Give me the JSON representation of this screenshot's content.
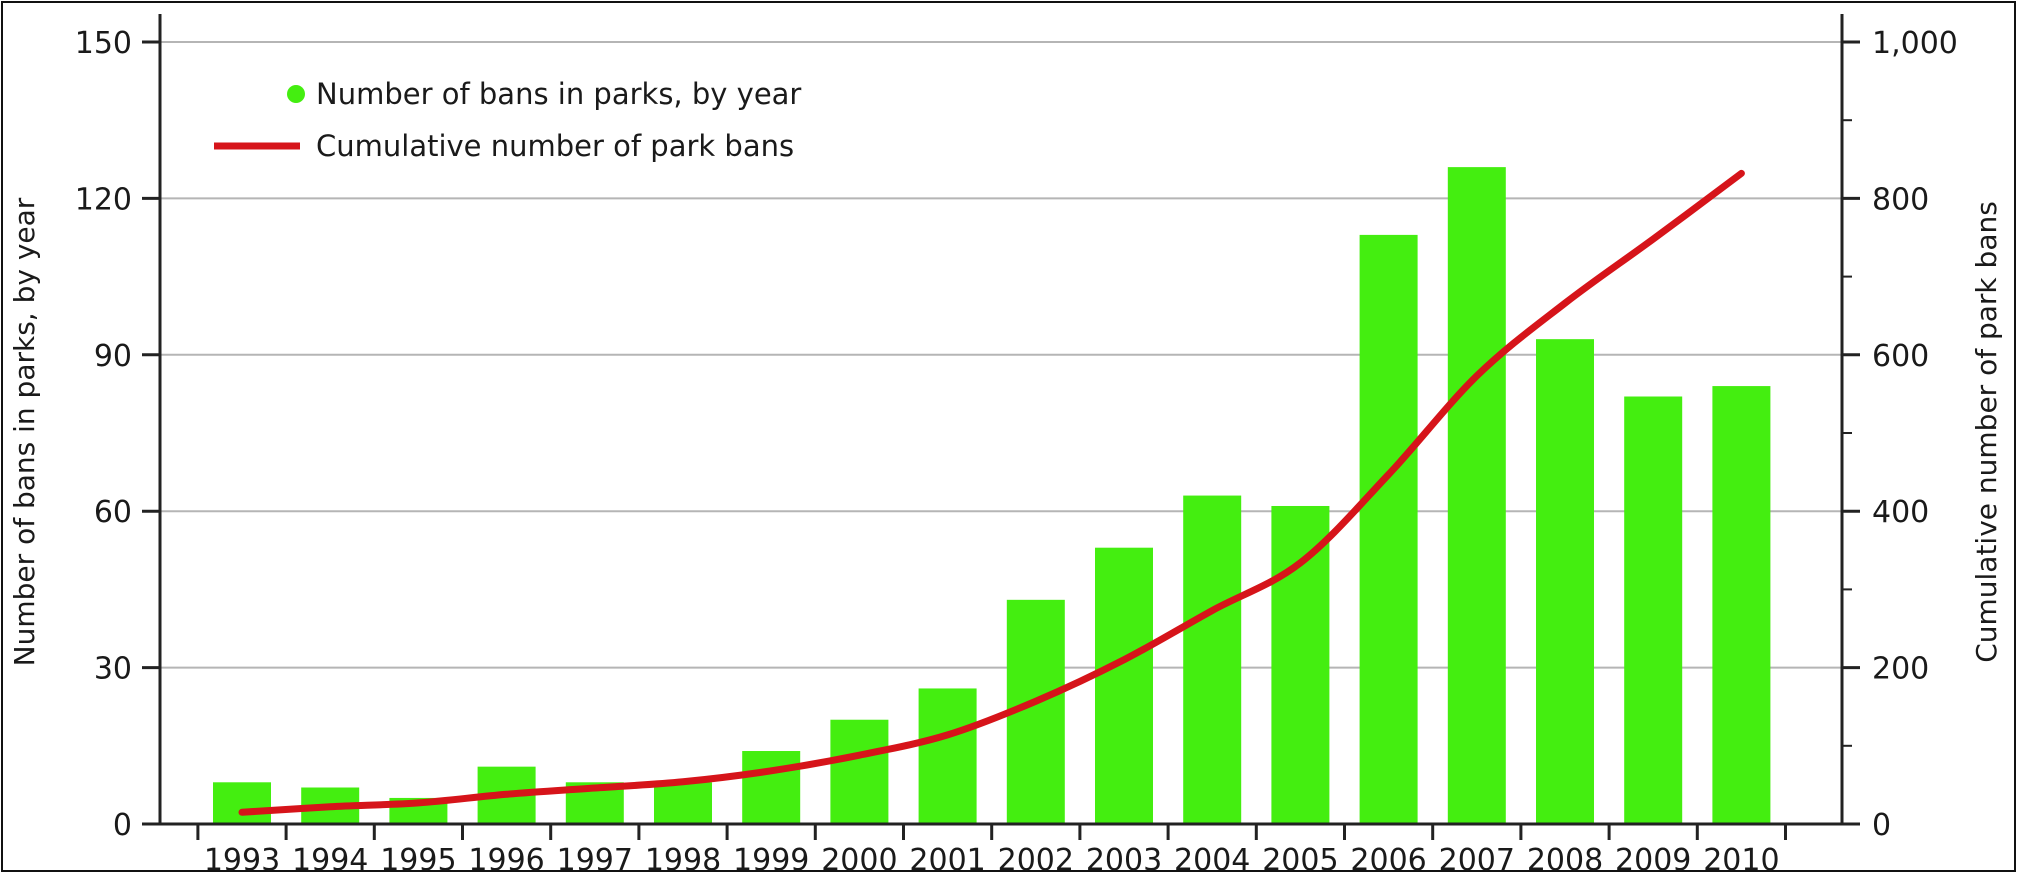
{
  "chart_data": {
    "type": "bar",
    "categories": [
      "1993",
      "1994",
      "1995",
      "1996",
      "1997",
      "1998",
      "1999",
      "2000",
      "2001",
      "2002",
      "2003",
      "2004",
      "2005",
      "2006",
      "2007",
      "2008",
      "2009",
      "2010"
    ],
    "series": [
      {
        "name": "Number of bans in parks, by year",
        "type": "bar",
        "axis": "left",
        "color": "#44ee10",
        "values": [
          8,
          7,
          5,
          11,
          8,
          8,
          14,
          20,
          26,
          43,
          53,
          63,
          61,
          113,
          126,
          93,
          82,
          84
        ]
      },
      {
        "name": "Cumulative number of park bans",
        "type": "line",
        "axis": "right",
        "color": "#d6141a",
        "values": [
          15,
          22,
          27,
          38,
          46,
          54,
          68,
          88,
          114,
          157,
          210,
          273,
          334,
          447,
          573,
          666,
          748,
          832
        ]
      }
    ],
    "ylabel": "Number of bans in parks, by year",
    "y2label": "Cumulative number of park bans",
    "ylim": [
      0,
      150
    ],
    "y2lim": [
      0,
      1000
    ],
    "yticks": [
      "0",
      "30",
      "60",
      "90",
      "120",
      "150"
    ],
    "y2ticks": [
      "0",
      "200",
      "400",
      "600",
      "800",
      "1,000"
    ],
    "grid": true,
    "legend_position": "top-left"
  }
}
